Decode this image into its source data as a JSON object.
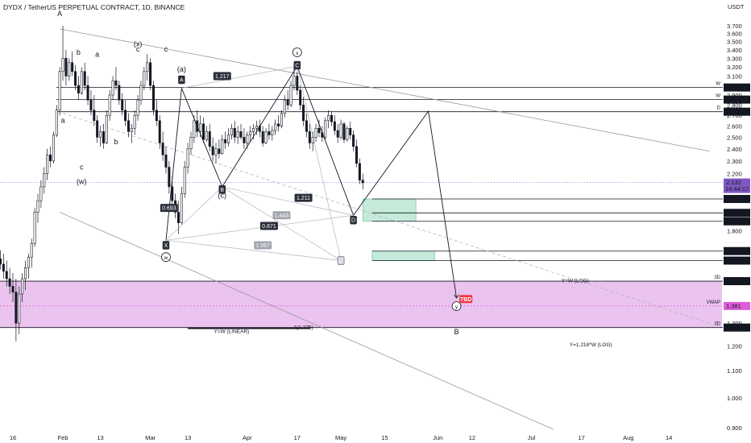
{
  "header": {
    "title": "DYDX / TetherUS PERPETUAL CONTRACT, 1D, BINANCE",
    "currency": "USDT"
  },
  "chart_data": {
    "type": "candlestick",
    "y_axis": {
      "scale": "log",
      "range": [
        0.86,
        3.99
      ],
      "ticks": [
        "3.700",
        "3.600",
        "3.500",
        "3.400",
        "3.300",
        "3.200",
        "3.100",
        "2.900",
        "2.800",
        "2.700",
        "2.600",
        "2.500",
        "2.400",
        "2.300",
        "2.200",
        "2.100",
        "1.800",
        "1.300",
        "1.200",
        "1.100",
        "1.000",
        "0.900"
      ]
    },
    "x_axis": {
      "ticks": [
        {
          "label": "16",
          "date": "2022-01-16"
        },
        {
          "label": "Feb",
          "date": "2022-02-01"
        },
        {
          "label": "13",
          "date": "2022-02-13"
        },
        {
          "label": "Mar",
          "date": "2022-03-01"
        },
        {
          "label": "13",
          "date": "2022-03-13"
        },
        {
          "label": "Apr",
          "date": "2022-04-01"
        },
        {
          "label": "17",
          "date": "2022-04-17"
        },
        {
          "label": "May",
          "date": "2022-05-01"
        },
        {
          "label": "15",
          "date": "2022-05-15"
        },
        {
          "label": "Jun",
          "date": "2022-06-01"
        },
        {
          "label": "12",
          "date": "2022-06-12"
        },
        {
          "label": "Jul",
          "date": "2022-07-01"
        },
        {
          "label": "17",
          "date": "2022-07-17"
        },
        {
          "label": "Aug",
          "date": "2022-08-01"
        },
        {
          "label": "14",
          "date": "2022-08-14"
        }
      ]
    },
    "price_candles": [
      [
        "2022-01-11",
        1.62,
        1.68,
        1.56,
        1.63
      ],
      [
        "2022-01-12",
        1.63,
        1.68,
        1.57,
        1.6
      ],
      [
        "2022-01-13",
        1.6,
        1.66,
        1.52,
        1.56
      ],
      [
        "2022-01-14",
        1.56,
        1.62,
        1.48,
        1.52
      ],
      [
        "2022-01-15",
        1.52,
        1.58,
        1.44,
        1.48
      ],
      [
        "2022-01-16",
        1.48,
        1.55,
        1.4,
        1.45
      ],
      [
        "2022-01-17",
        1.45,
        1.52,
        1.22,
        1.3
      ],
      [
        "2022-01-18",
        1.3,
        1.48,
        1.25,
        1.44
      ],
      [
        "2022-01-19",
        1.44,
        1.55,
        1.4,
        1.52
      ],
      [
        "2022-01-20",
        1.52,
        1.62,
        1.46,
        1.58
      ],
      [
        "2022-01-21",
        1.58,
        1.66,
        1.52,
        1.64
      ],
      [
        "2022-01-22",
        1.64,
        1.75,
        1.58,
        1.72
      ],
      [
        "2022-01-23",
        1.72,
        1.95,
        1.7,
        1.92
      ],
      [
        "2022-01-24",
        1.92,
        2.05,
        1.85,
        2.0
      ],
      [
        "2022-01-25",
        2.0,
        2.15,
        1.95,
        2.1
      ],
      [
        "2022-01-26",
        2.1,
        2.25,
        2.05,
        2.2
      ],
      [
        "2022-01-27",
        2.2,
        2.4,
        2.15,
        2.35
      ],
      [
        "2022-01-28",
        2.35,
        2.42,
        2.25,
        2.3
      ],
      [
        "2022-01-29",
        2.3,
        2.55,
        2.28,
        2.52
      ],
      [
        "2022-01-30",
        2.52,
        2.8,
        2.5,
        2.75
      ],
      [
        "2022-01-31",
        2.75,
        3.2,
        2.7,
        3.15
      ],
      [
        "2022-02-01",
        3.15,
        3.7,
        3.05,
        3.3
      ],
      [
        "2022-02-02",
        3.3,
        3.4,
        3.0,
        3.1
      ],
      [
        "2022-02-03",
        3.1,
        3.3,
        3.05,
        3.25
      ],
      [
        "2022-02-04",
        3.25,
        3.38,
        3.1,
        3.15
      ],
      [
        "2022-02-05",
        3.15,
        3.22,
        2.95,
        3.0
      ],
      [
        "2022-02-06",
        3.0,
        3.1,
        2.85,
        2.92
      ],
      [
        "2022-02-07",
        2.92,
        3.2,
        2.9,
        3.15
      ],
      [
        "2022-02-08",
        3.15,
        3.25,
        2.95,
        3.0
      ],
      [
        "2022-02-09",
        3.0,
        3.1,
        2.8,
        2.85
      ],
      [
        "2022-02-10",
        2.85,
        2.95,
        2.7,
        2.75
      ],
      [
        "2022-02-11",
        2.75,
        2.9,
        2.6,
        2.65
      ],
      [
        "2022-02-12",
        2.65,
        2.7,
        2.45,
        2.5
      ],
      [
        "2022-02-13",
        2.5,
        2.6,
        2.42,
        2.55
      ],
      [
        "2022-02-14",
        2.55,
        2.62,
        2.4,
        2.45
      ],
      [
        "2022-02-15",
        2.45,
        2.75,
        2.44,
        2.7
      ],
      [
        "2022-02-16",
        2.7,
        2.95,
        2.65,
        2.9
      ],
      [
        "2022-02-17",
        2.9,
        3.1,
        2.85,
        3.05
      ],
      [
        "2022-02-18",
        3.05,
        3.2,
        2.95,
        3.0
      ],
      [
        "2022-02-19",
        3.0,
        3.05,
        2.8,
        2.85
      ],
      [
        "2022-02-20",
        2.85,
        2.92,
        2.7,
        2.75
      ],
      [
        "2022-02-21",
        2.75,
        2.85,
        2.6,
        2.65
      ],
      [
        "2022-02-22",
        2.65,
        2.72,
        2.5,
        2.55
      ],
      [
        "2022-02-23",
        2.55,
        2.62,
        2.45,
        2.58
      ],
      [
        "2022-02-24",
        2.58,
        2.75,
        2.52,
        2.7
      ],
      [
        "2022-02-25",
        2.7,
        2.9,
        2.65,
        2.85
      ],
      [
        "2022-02-26",
        2.85,
        3.05,
        2.8,
        3.0
      ],
      [
        "2022-02-27",
        3.0,
        3.2,
        2.95,
        3.15
      ],
      [
        "2022-02-28",
        3.15,
        3.35,
        3.05,
        3.25
      ],
      [
        "2022-03-01",
        3.25,
        3.3,
        2.95,
        3.0
      ],
      [
        "2022-03-02",
        3.0,
        3.05,
        2.7,
        2.75
      ],
      [
        "2022-03-03",
        2.75,
        2.85,
        2.6,
        2.65
      ],
      [
        "2022-03-04",
        2.65,
        2.7,
        2.4,
        2.45
      ],
      [
        "2022-03-05",
        2.45,
        2.55,
        2.3,
        2.35
      ],
      [
        "2022-03-06",
        2.35,
        2.42,
        2.2,
        2.25
      ],
      [
        "2022-03-07",
        2.25,
        2.3,
        2.05,
        2.1
      ],
      [
        "2022-03-08",
        2.1,
        2.18,
        1.95,
        2.0
      ],
      [
        "2022-03-09",
        2.0,
        2.05,
        1.88,
        1.92
      ],
      [
        "2022-03-10",
        1.92,
        2.0,
        1.78,
        1.85
      ],
      [
        "2022-03-11",
        1.85,
        2.1,
        1.84,
        2.05
      ],
      [
        "2022-03-12",
        2.05,
        2.3,
        2.02,
        2.25
      ],
      [
        "2022-03-13",
        2.25,
        2.45,
        2.2,
        2.4
      ],
      [
        "2022-03-14",
        2.4,
        2.55,
        2.35,
        2.5
      ],
      [
        "2022-03-15",
        2.5,
        2.7,
        2.45,
        2.65
      ],
      [
        "2022-03-16",
        2.65,
        2.75,
        2.5,
        2.55
      ],
      [
        "2022-03-17",
        2.55,
        2.7,
        2.5,
        2.62
      ],
      [
        "2022-03-18",
        2.62,
        2.68,
        2.45,
        2.48
      ],
      [
        "2022-03-19",
        2.48,
        2.6,
        2.46,
        2.55
      ],
      [
        "2022-03-20",
        2.55,
        2.62,
        2.38,
        2.42
      ],
      [
        "2022-03-21",
        2.42,
        2.5,
        2.3,
        2.35
      ],
      [
        "2022-03-22",
        2.35,
        2.45,
        2.28,
        2.4
      ],
      [
        "2022-03-23",
        2.4,
        2.48,
        2.32,
        2.36
      ],
      [
        "2022-03-24",
        2.36,
        2.52,
        2.35,
        2.48
      ],
      [
        "2022-03-25",
        2.48,
        2.55,
        2.4,
        2.45
      ],
      [
        "2022-03-26",
        2.45,
        2.58,
        2.42,
        2.52
      ],
      [
        "2022-03-27",
        2.52,
        2.62,
        2.48,
        2.58
      ],
      [
        "2022-03-28",
        2.58,
        2.65,
        2.45,
        2.5
      ],
      [
        "2022-03-29",
        2.5,
        2.6,
        2.44,
        2.55
      ],
      [
        "2022-03-30",
        2.55,
        2.62,
        2.48,
        2.5
      ],
      [
        "2022-03-31",
        2.5,
        2.58,
        2.4,
        2.45
      ],
      [
        "2022-04-01",
        2.45,
        2.55,
        2.4,
        2.52
      ],
      [
        "2022-04-02",
        2.52,
        2.6,
        2.46,
        2.55
      ],
      [
        "2022-04-03",
        2.55,
        2.62,
        2.48,
        2.58
      ],
      [
        "2022-04-04",
        2.58,
        2.65,
        2.52,
        2.6
      ],
      [
        "2022-04-05",
        2.6,
        2.66,
        2.5,
        2.55
      ],
      [
        "2022-04-06",
        2.55,
        2.6,
        2.42,
        2.45
      ],
      [
        "2022-04-07",
        2.45,
        2.58,
        2.44,
        2.55
      ],
      [
        "2022-04-08",
        2.55,
        2.62,
        2.48,
        2.52
      ],
      [
        "2022-04-09",
        2.52,
        2.6,
        2.47,
        2.56
      ],
      [
        "2022-04-10",
        2.56,
        2.66,
        2.52,
        2.62
      ],
      [
        "2022-04-11",
        2.62,
        2.7,
        2.55,
        2.6
      ],
      [
        "2022-04-12",
        2.6,
        2.75,
        2.58,
        2.72
      ],
      [
        "2022-04-13",
        2.72,
        2.9,
        2.68,
        2.85
      ],
      [
        "2022-04-14",
        2.85,
        2.95,
        2.75,
        2.8
      ],
      [
        "2022-04-15",
        2.8,
        3.05,
        2.78,
        3.0
      ],
      [
        "2022-04-16",
        3.0,
        3.22,
        2.95,
        3.1
      ],
      [
        "2022-04-17",
        3.1,
        3.15,
        2.9,
        2.95
      ],
      [
        "2022-04-18",
        2.95,
        3.0,
        2.75,
        2.8
      ],
      [
        "2022-04-19",
        2.8,
        2.88,
        2.6,
        2.65
      ],
      [
        "2022-04-20",
        2.65,
        2.72,
        2.5,
        2.55
      ],
      [
        "2022-04-21",
        2.55,
        2.62,
        2.4,
        2.45
      ],
      [
        "2022-04-22",
        2.45,
        2.55,
        2.38,
        2.5
      ],
      [
        "2022-04-23",
        2.5,
        2.62,
        2.46,
        2.58
      ],
      [
        "2022-04-24",
        2.58,
        2.66,
        2.5,
        2.54
      ],
      [
        "2022-04-25",
        2.54,
        2.6,
        2.46,
        2.5
      ],
      [
        "2022-04-26",
        2.5,
        2.68,
        2.48,
        2.65
      ],
      [
        "2022-04-27",
        2.65,
        2.75,
        2.58,
        2.7
      ],
      [
        "2022-04-28",
        2.7,
        2.74,
        2.6,
        2.64
      ],
      [
        "2022-04-29",
        2.64,
        2.7,
        2.52,
        2.56
      ],
      [
        "2022-04-30",
        2.56,
        2.62,
        2.45,
        2.5
      ],
      [
        "2022-05-01",
        2.5,
        2.66,
        2.48,
        2.62
      ],
      [
        "2022-05-02",
        2.62,
        2.64,
        2.45,
        2.48
      ],
      [
        "2022-05-03",
        2.48,
        2.6,
        2.46,
        2.58
      ],
      [
        "2022-05-04",
        2.58,
        2.64,
        2.48,
        2.52
      ],
      [
        "2022-05-05",
        2.52,
        2.56,
        2.38,
        2.42
      ],
      [
        "2022-05-06",
        2.42,
        2.48,
        2.25,
        2.28
      ],
      [
        "2022-05-07",
        2.28,
        2.32,
        2.12,
        2.15
      ],
      [
        "2022-05-08",
        2.15,
        2.2,
        2.08,
        2.13
      ]
    ],
    "price_labels": [
      {
        "value": 2.978,
        "text": "2.978",
        "tag": "W",
        "color": "#131722"
      },
      {
        "value": 2.854,
        "text": "2.854",
        "tag": "W",
        "color": "#131722"
      },
      {
        "value": 2.735,
        "text": "2.735",
        "tag": "D",
        "color": "#131722"
      },
      {
        "value": 2.132,
        "text": "2.132",
        "sub": "14:44:17",
        "color": "#7e57c2"
      },
      {
        "value": 2.012,
        "text": "2.012",
        "color": "#131722"
      },
      {
        "value": 1.916,
        "text": "1.916",
        "color": "#131722"
      },
      {
        "value": 1.86,
        "text": "1.860",
        "color": "#131722"
      },
      {
        "value": 1.675,
        "text": "1.675",
        "color": "#131722"
      },
      {
        "value": 1.62,
        "text": "1.620",
        "color": "#131722"
      },
      {
        "value": 1.507,
        "text": "1.507",
        "tag": "3D",
        "color": "#131722"
      },
      {
        "value": 1.381,
        "text": "1.381",
        "tag": "VWAP",
        "color": "#e05cd8"
      },
      {
        "value": 1.28,
        "text": "1.280",
        "tag": "3D",
        "color": "#131722"
      }
    ],
    "wave_labels": [
      {
        "text": "A",
        "date": "2022-01-31",
        "price": 3.83
      },
      {
        "text": "b",
        "date": "2022-02-06",
        "price": 3.34
      },
      {
        "text": "a",
        "date": "2022-02-01",
        "price": 2.63
      },
      {
        "text": "c",
        "date": "2022-02-07",
        "price": 2.23
      },
      {
        "text": "(w)",
        "date": "2022-02-07",
        "price": 2.12
      },
      {
        "text": "a",
        "date": "2022-02-12",
        "price": 3.32
      },
      {
        "text": "b",
        "date": "2022-02-18",
        "price": 2.44
      },
      {
        "text": "(x)",
        "date": "2022-02-25",
        "price": 3.44
      },
      {
        "text": "c",
        "date": "2022-02-25",
        "price": 3.38
      },
      {
        "text": "(a)",
        "date": "2022-03-11",
        "price": 3.15
      },
      {
        "text": "(c)",
        "date": "2022-03-24",
        "price": 2.02
      },
      {
        "text": "c",
        "date": "2022-03-06",
        "price": 3.38
      },
      {
        "text": "B",
        "date": "2022-06-07",
        "price": 1.25
      }
    ],
    "boxed_labels": [
      {
        "text": "A",
        "date": "2022-03-11",
        "price": 3.06
      },
      {
        "text": "B",
        "date": "2022-03-24",
        "price": 2.08
      },
      {
        "text": "C",
        "date": "2022-04-17",
        "price": 3.22
      },
      {
        "text": "X",
        "date": "2022-03-06",
        "price": 1.71
      },
      {
        "text": "D",
        "date": "2022-05-01",
        "price": 1.62
      },
      {
        "text": "D",
        "date": "2022-05-05",
        "price": 1.868
      }
    ],
    "circled_labels": [
      {
        "text": "x",
        "date": "2022-04-17",
        "price": 3.37
      },
      {
        "text": "w",
        "date": "2022-03-06",
        "price": 1.64
      },
      {
        "text": "y",
        "date": "2022-06-07",
        "price": 1.38
      }
    ],
    "ratio_labels": [
      {
        "text": "1.217",
        "date": "2022-03-24",
        "price": 3.1,
        "style": "dark"
      },
      {
        "text": "0.693",
        "date": "2022-03-07",
        "price": 1.95,
        "style": "dark"
      },
      {
        "text": "1.211",
        "date": "2022-04-19",
        "price": 2.02,
        "style": "dark"
      },
      {
        "text": "1.443",
        "date": "2022-04-12",
        "price": 1.9,
        "style": "gray"
      },
      {
        "text": "0.871",
        "date": "2022-04-08",
        "price": 1.83,
        "style": "dark"
      },
      {
        "text": "1.067",
        "date": "2022-04-06",
        "price": 1.71,
        "style": "gray"
      }
    ],
    "zones": [
      {
        "name": "pink-zone",
        "from": "2022-01-11",
        "to": "2022-08-31",
        "low": 1.28,
        "high": 1.507,
        "color": "#e7b8ec"
      },
      {
        "name": "green-zone-upper",
        "from": "2022-05-08",
        "to": "2022-05-25",
        "low": 1.86,
        "high": 2.012,
        "color": "#bfe8d5"
      },
      {
        "name": "green-zone-lower",
        "from": "2022-05-11",
        "to": "2022-05-31",
        "low": 1.62,
        "high": 1.675,
        "color": "#bfe8d5"
      }
    ],
    "notes": [
      {
        "text": "TBD",
        "date": "2022-06-10",
        "price": 1.415,
        "style": "red-badge"
      },
      {
        "text": "Y=W (LOG)",
        "date": "2022-07-15",
        "price": 1.51
      },
      {
        "text": "Y=W (LINEAR)",
        "date": "2022-03-27",
        "price": 1.263
      },
      {
        "text": "1(1.275)",
        "date": "2022-04-19",
        "price": 1.28
      },
      {
        "text": "Y=1.218*W (LOG)",
        "date": "2022-07-20",
        "price": 1.205
      }
    ]
  }
}
